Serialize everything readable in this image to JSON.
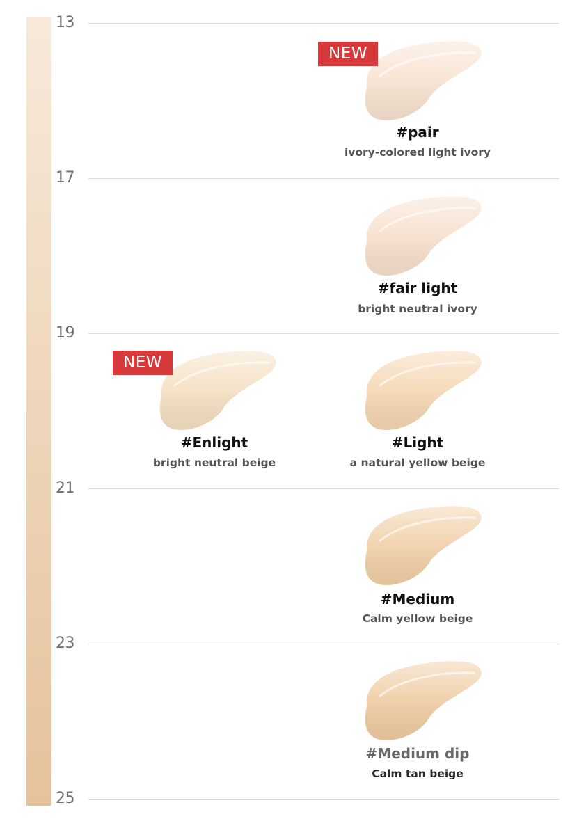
{
  "scale": {
    "ticks": [
      "13",
      "17",
      "19",
      "21",
      "23",
      "25"
    ],
    "gradient_colors": [
      "#f7e9da",
      "#e5c29b"
    ]
  },
  "badge_label": "NEW",
  "shades": [
    {
      "name": "#pair",
      "description": "ivory-colored light ivory",
      "is_new": true,
      "color": "#f8e2d0"
    },
    {
      "name": "#fair light",
      "description": "bright neutral ivory",
      "is_new": false,
      "color": "#f7dfcc"
    },
    {
      "name": "#Enlight",
      "description": "bright neutral beige",
      "is_new": true,
      "color": "#f5dfc1"
    },
    {
      "name": "#Light",
      "description": "a natural yellow beige",
      "is_new": false,
      "color": "#f5d6b2"
    },
    {
      "name": "#Medium",
      "description": "Calm yellow beige",
      "is_new": false,
      "color": "#f0cfa6"
    },
    {
      "name": "#Medium dip",
      "description": "Calm tan beige",
      "is_new": false,
      "color": "#efcba2"
    }
  ]
}
